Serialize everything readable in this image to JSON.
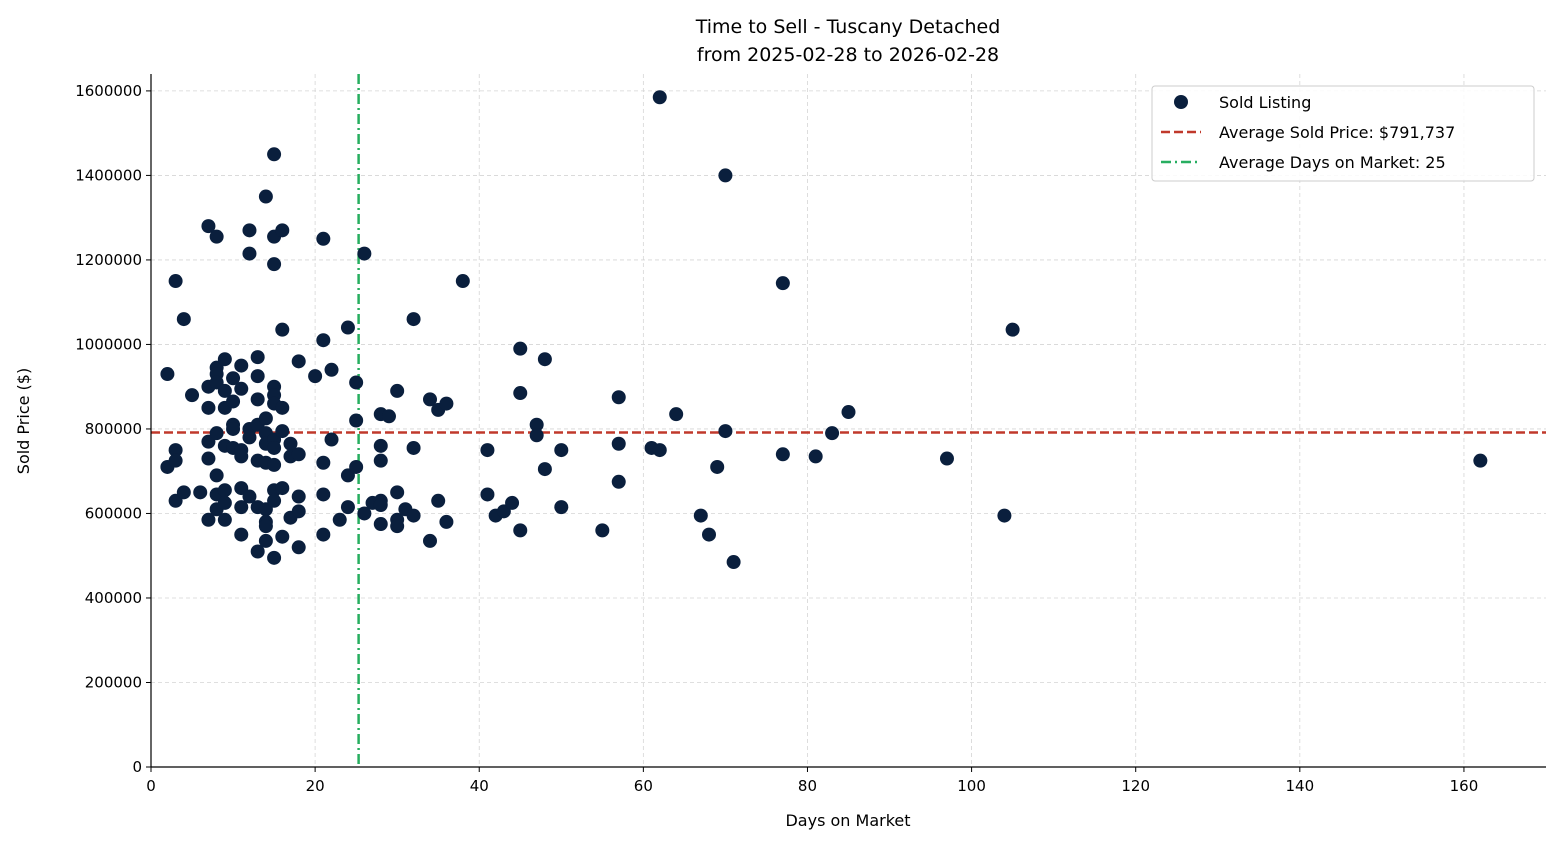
{
  "chart_data": {
    "type": "scatter",
    "title": "Time to Sell - Tuscany Detached",
    "subtitle": "from 2025-02-28 to 2026-02-28",
    "xlabel": "Days on Market",
    "ylabel": "Sold Price ($)",
    "xlim": [
      0,
      170
    ],
    "ylim": [
      0,
      1640000
    ],
    "xticks": [
      0,
      20,
      40,
      60,
      80,
      100,
      120,
      140,
      160
    ],
    "yticks": [
      0,
      200000,
      400000,
      600000,
      800000,
      1000000,
      1200000,
      1400000,
      1600000
    ],
    "grid": true,
    "legend_placement": "top-right",
    "colors": {
      "points": "#0a1f3d",
      "avg_price": "#c0392b",
      "avg_days": "#27ae60"
    },
    "series": [
      {
        "name": "Sold Listing",
        "points": [
          [
            2,
            930000
          ],
          [
            2,
            710000
          ],
          [
            3,
            1150000
          ],
          [
            3,
            750000
          ],
          [
            3,
            725000
          ],
          [
            3,
            630000
          ],
          [
            4,
            1060000
          ],
          [
            4,
            650000
          ],
          [
            5,
            880000
          ],
          [
            6,
            650000
          ],
          [
            7,
            1280000
          ],
          [
            7,
            900000
          ],
          [
            7,
            850000
          ],
          [
            7,
            770000
          ],
          [
            7,
            730000
          ],
          [
            7,
            585000
          ],
          [
            8,
            1255000
          ],
          [
            8,
            945000
          ],
          [
            8,
            930000
          ],
          [
            8,
            910000
          ],
          [
            8,
            790000
          ],
          [
            8,
            690000
          ],
          [
            8,
            645000
          ],
          [
            8,
            610000
          ],
          [
            9,
            965000
          ],
          [
            9,
            890000
          ],
          [
            9,
            850000
          ],
          [
            9,
            760000
          ],
          [
            9,
            655000
          ],
          [
            9,
            625000
          ],
          [
            9,
            585000
          ],
          [
            10,
            920000
          ],
          [
            10,
            865000
          ],
          [
            10,
            810000
          ],
          [
            10,
            800000
          ],
          [
            10,
            755000
          ],
          [
            11,
            950000
          ],
          [
            11,
            895000
          ],
          [
            11,
            750000
          ],
          [
            11,
            735000
          ],
          [
            11,
            660000
          ],
          [
            11,
            615000
          ],
          [
            11,
            550000
          ],
          [
            12,
            1270000
          ],
          [
            12,
            1215000
          ],
          [
            12,
            800000
          ],
          [
            12,
            780000
          ],
          [
            12,
            640000
          ],
          [
            13,
            970000
          ],
          [
            13,
            925000
          ],
          [
            13,
            870000
          ],
          [
            13,
            810000
          ],
          [
            13,
            725000
          ],
          [
            13,
            615000
          ],
          [
            13,
            510000
          ],
          [
            14,
            1350000
          ],
          [
            14,
            825000
          ],
          [
            14,
            790000
          ],
          [
            14,
            765000
          ],
          [
            14,
            720000
          ],
          [
            14,
            610000
          ],
          [
            14,
            580000
          ],
          [
            14,
            570000
          ],
          [
            14,
            535000
          ],
          [
            15,
            1450000
          ],
          [
            15,
            1255000
          ],
          [
            15,
            1190000
          ],
          [
            15,
            900000
          ],
          [
            15,
            880000
          ],
          [
            15,
            860000
          ],
          [
            15,
            775000
          ],
          [
            15,
            755000
          ],
          [
            15,
            715000
          ],
          [
            15,
            655000
          ],
          [
            15,
            630000
          ],
          [
            15,
            495000
          ],
          [
            16,
            1270000
          ],
          [
            16,
            1035000
          ],
          [
            16,
            850000
          ],
          [
            16,
            795000
          ],
          [
            16,
            660000
          ],
          [
            16,
            545000
          ],
          [
            17,
            765000
          ],
          [
            17,
            735000
          ],
          [
            17,
            590000
          ],
          [
            18,
            960000
          ],
          [
            18,
            740000
          ],
          [
            18,
            640000
          ],
          [
            18,
            605000
          ],
          [
            18,
            520000
          ],
          [
            20,
            925000
          ],
          [
            21,
            1250000
          ],
          [
            21,
            1010000
          ],
          [
            21,
            720000
          ],
          [
            21,
            645000
          ],
          [
            21,
            550000
          ],
          [
            22,
            940000
          ],
          [
            22,
            775000
          ],
          [
            23,
            585000
          ],
          [
            24,
            1040000
          ],
          [
            24,
            690000
          ],
          [
            24,
            615000
          ],
          [
            25,
            910000
          ],
          [
            25,
            820000
          ],
          [
            25,
            710000
          ],
          [
            26,
            1215000
          ],
          [
            26,
            600000
          ],
          [
            27,
            625000
          ],
          [
            28,
            835000
          ],
          [
            28,
            760000
          ],
          [
            28,
            725000
          ],
          [
            28,
            630000
          ],
          [
            28,
            620000
          ],
          [
            28,
            575000
          ],
          [
            29,
            830000
          ],
          [
            30,
            890000
          ],
          [
            30,
            650000
          ],
          [
            30,
            585000
          ],
          [
            30,
            570000
          ],
          [
            31,
            610000
          ],
          [
            32,
            1060000
          ],
          [
            32,
            755000
          ],
          [
            32,
            595000
          ],
          [
            34,
            870000
          ],
          [
            34,
            535000
          ],
          [
            35,
            845000
          ],
          [
            35,
            630000
          ],
          [
            36,
            860000
          ],
          [
            36,
            580000
          ],
          [
            38,
            1150000
          ],
          [
            41,
            750000
          ],
          [
            41,
            645000
          ],
          [
            42,
            595000
          ],
          [
            43,
            605000
          ],
          [
            44,
            625000
          ],
          [
            45,
            990000
          ],
          [
            45,
            885000
          ],
          [
            45,
            560000
          ],
          [
            47,
            810000
          ],
          [
            47,
            785000
          ],
          [
            48,
            965000
          ],
          [
            48,
            705000
          ],
          [
            50,
            750000
          ],
          [
            50,
            615000
          ],
          [
            55,
            560000
          ],
          [
            57,
            875000
          ],
          [
            57,
            765000
          ],
          [
            57,
            675000
          ],
          [
            61,
            755000
          ],
          [
            62,
            1585000
          ],
          [
            62,
            750000
          ],
          [
            64,
            835000
          ],
          [
            67,
            595000
          ],
          [
            68,
            550000
          ],
          [
            69,
            710000
          ],
          [
            70,
            1400000
          ],
          [
            70,
            795000
          ],
          [
            71,
            485000
          ],
          [
            77,
            1145000
          ],
          [
            77,
            740000
          ],
          [
            81,
            735000
          ],
          [
            83,
            790000
          ],
          [
            85,
            840000
          ],
          [
            97,
            730000
          ],
          [
            104,
            595000
          ],
          [
            105,
            1035000
          ],
          [
            162,
            725000
          ]
        ]
      }
    ],
    "reference_lines": [
      {
        "name": "Average Sold Price: $791,737",
        "orientation": "horizontal",
        "value": 791737,
        "style": "dashed"
      },
      {
        "name": "Average Days on Market: 25",
        "orientation": "vertical",
        "value": 25.3,
        "style": "dashdot"
      }
    ]
  }
}
